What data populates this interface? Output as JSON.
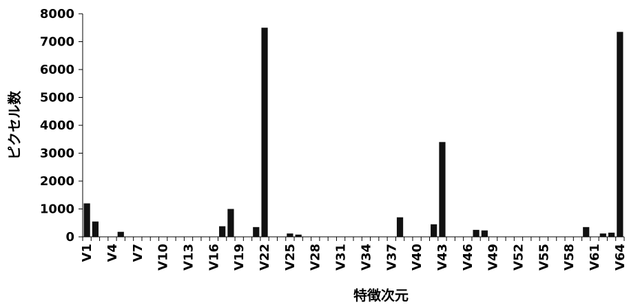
{
  "chart_data": {
    "type": "bar",
    "title": "",
    "xlabel": "特徴次元",
    "ylabel": "ピクセル数",
    "ylim": [
      0,
      8000
    ],
    "yticks": [
      0,
      1000,
      2000,
      3000,
      4000,
      5000,
      6000,
      7000,
      8000
    ],
    "grid": false,
    "legend": "none",
    "bar_color": "#111111",
    "categories": [
      "V1",
      "V2",
      "V3",
      "V4",
      "V5",
      "V6",
      "V7",
      "V8",
      "V9",
      "V10",
      "V11",
      "V12",
      "V13",
      "V14",
      "V15",
      "V16",
      "V17",
      "V18",
      "V19",
      "V20",
      "V21",
      "V22",
      "V23",
      "V24",
      "V25",
      "V26",
      "V27",
      "V28",
      "V29",
      "V30",
      "V31",
      "V32",
      "V33",
      "V34",
      "V35",
      "V36",
      "V37",
      "V38",
      "V39",
      "V40",
      "V41",
      "V42",
      "V43",
      "V44",
      "V45",
      "V46",
      "V47",
      "V48",
      "V49",
      "V50",
      "V51",
      "V52",
      "V53",
      "V54",
      "V55",
      "V56",
      "V57",
      "V58",
      "V59",
      "V60",
      "V61",
      "V62",
      "V63",
      "V64"
    ],
    "tick_labels": [
      "V1",
      "V4",
      "V7",
      "V10",
      "V13",
      "V16",
      "V19",
      "V22",
      "V25",
      "V28",
      "V31",
      "V34",
      "V37",
      "V40",
      "V43",
      "V46",
      "V49",
      "V52",
      "V55",
      "V58",
      "V61",
      "V64"
    ],
    "values": [
      1200,
      550,
      0,
      0,
      180,
      0,
      0,
      0,
      0,
      0,
      0,
      0,
      0,
      0,
      0,
      0,
      380,
      1000,
      0,
      0,
      350,
      7500,
      0,
      0,
      120,
      80,
      0,
      0,
      0,
      0,
      0,
      0,
      0,
      0,
      0,
      0,
      0,
      700,
      0,
      0,
      0,
      450,
      3400,
      0,
      0,
      0,
      250,
      230,
      0,
      0,
      0,
      0,
      0,
      0,
      0,
      0,
      0,
      0,
      0,
      350,
      0,
      120,
      150,
      7350
    ]
  }
}
